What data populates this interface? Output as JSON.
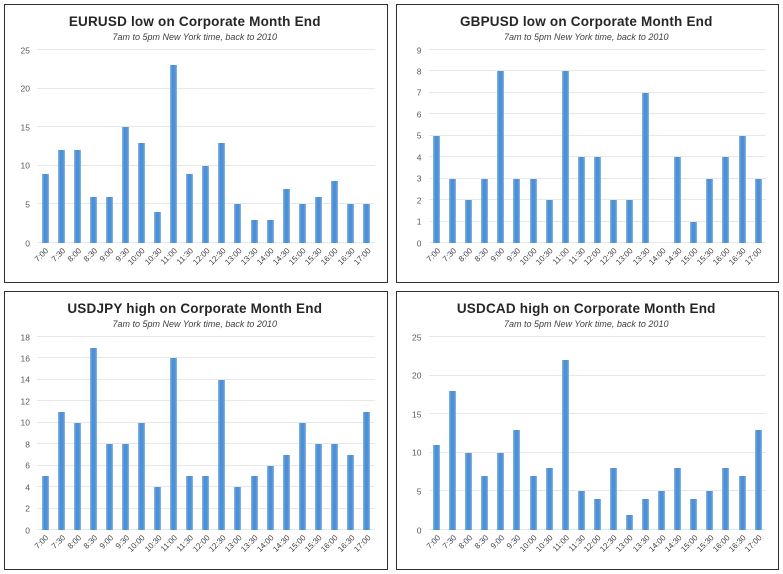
{
  "colors": {
    "bar_core": "#4e90d5",
    "bar_edge": "#8ab7e6",
    "gridline": "#e8e8e8",
    "panel_border": "#2e2e2e",
    "title_text": "#262626",
    "subtitle_text": "#404040",
    "tick_text": "#595959"
  },
  "chart_data": [
    {
      "type": "bar",
      "title": "EURUSD low on Corporate Month End",
      "subtitle": "7am to 5pm New York time, back to 2010",
      "categories": [
        "7:00",
        "7:30",
        "8:00",
        "8:30",
        "9:00",
        "9:30",
        "10:00",
        "10:30",
        "11:00",
        "11:30",
        "12:00",
        "12:30",
        "13:00",
        "13:30",
        "14:00",
        "14:30",
        "15:00",
        "15:30",
        "16:00",
        "16:30",
        "17:00"
      ],
      "values": [
        9,
        12,
        12,
        6,
        6,
        15,
        13,
        4,
        23,
        9,
        10,
        13,
        5,
        3,
        3,
        7,
        5,
        6,
        8,
        5,
        5
      ],
      "xlabel": "",
      "ylabel": "",
      "ylim": [
        0,
        25
      ],
      "ytick_step": 5,
      "grid": true,
      "legend": false
    },
    {
      "type": "bar",
      "title": "GBPUSD low on Corporate Month End",
      "subtitle": "7am to 5pm New York time, back to 2010",
      "categories": [
        "7:00",
        "7:30",
        "8:00",
        "8:30",
        "9:00",
        "9:30",
        "10:00",
        "10:30",
        "11:00",
        "11:30",
        "12:00",
        "12:30",
        "13:00",
        "13:30",
        "14:00",
        "14:30",
        "15:00",
        "15:30",
        "16:00",
        "16:30",
        "17:00"
      ],
      "values": [
        5,
        3,
        2,
        3,
        8,
        3,
        3,
        2,
        8,
        4,
        4,
        2,
        2,
        7,
        0,
        4,
        1,
        3,
        4,
        5,
        3
      ],
      "xlabel": "",
      "ylabel": "",
      "ylim": [
        0,
        9
      ],
      "ytick_step": 1,
      "grid": true,
      "legend": false
    },
    {
      "type": "bar",
      "title": "USDJPY high on Corporate Month End",
      "subtitle": "7am to 5pm New York time, back to 2010",
      "categories": [
        "7:00",
        "7:30",
        "8:00",
        "8:30",
        "9:00",
        "9:30",
        "10:00",
        "10:30",
        "11:00",
        "11:30",
        "12:00",
        "12:30",
        "13:00",
        "13:30",
        "14:00",
        "14:30",
        "15:00",
        "15:30",
        "16:00",
        "16:30",
        "17:00"
      ],
      "values": [
        5,
        11,
        10,
        17,
        8,
        8,
        10,
        4,
        16,
        5,
        5,
        14,
        4,
        5,
        6,
        7,
        10,
        8,
        8,
        7,
        11
      ],
      "xlabel": "",
      "ylabel": "",
      "ylim": [
        0,
        18
      ],
      "ytick_step": 2,
      "grid": true,
      "legend": false
    },
    {
      "type": "bar",
      "title": "USDCAD high on Corporate Month End",
      "subtitle": "7am to 5pm New York time, back to 2010",
      "categories": [
        "7:00",
        "7:30",
        "8:00",
        "8:30",
        "9:00",
        "9:30",
        "10:00",
        "10:30",
        "11:00",
        "11:30",
        "12:00",
        "12:30",
        "13:00",
        "13:30",
        "14:00",
        "14:30",
        "15:00",
        "15:30",
        "16:00",
        "16:30",
        "17:00"
      ],
      "values": [
        11,
        18,
        10,
        7,
        10,
        13,
        7,
        8,
        22,
        5,
        4,
        8,
        2,
        4,
        5,
        8,
        4,
        5,
        8,
        7,
        13
      ],
      "xlabel": "",
      "ylabel": "",
      "ylim": [
        0,
        25
      ],
      "ytick_step": 5,
      "grid": true,
      "legend": false
    }
  ]
}
